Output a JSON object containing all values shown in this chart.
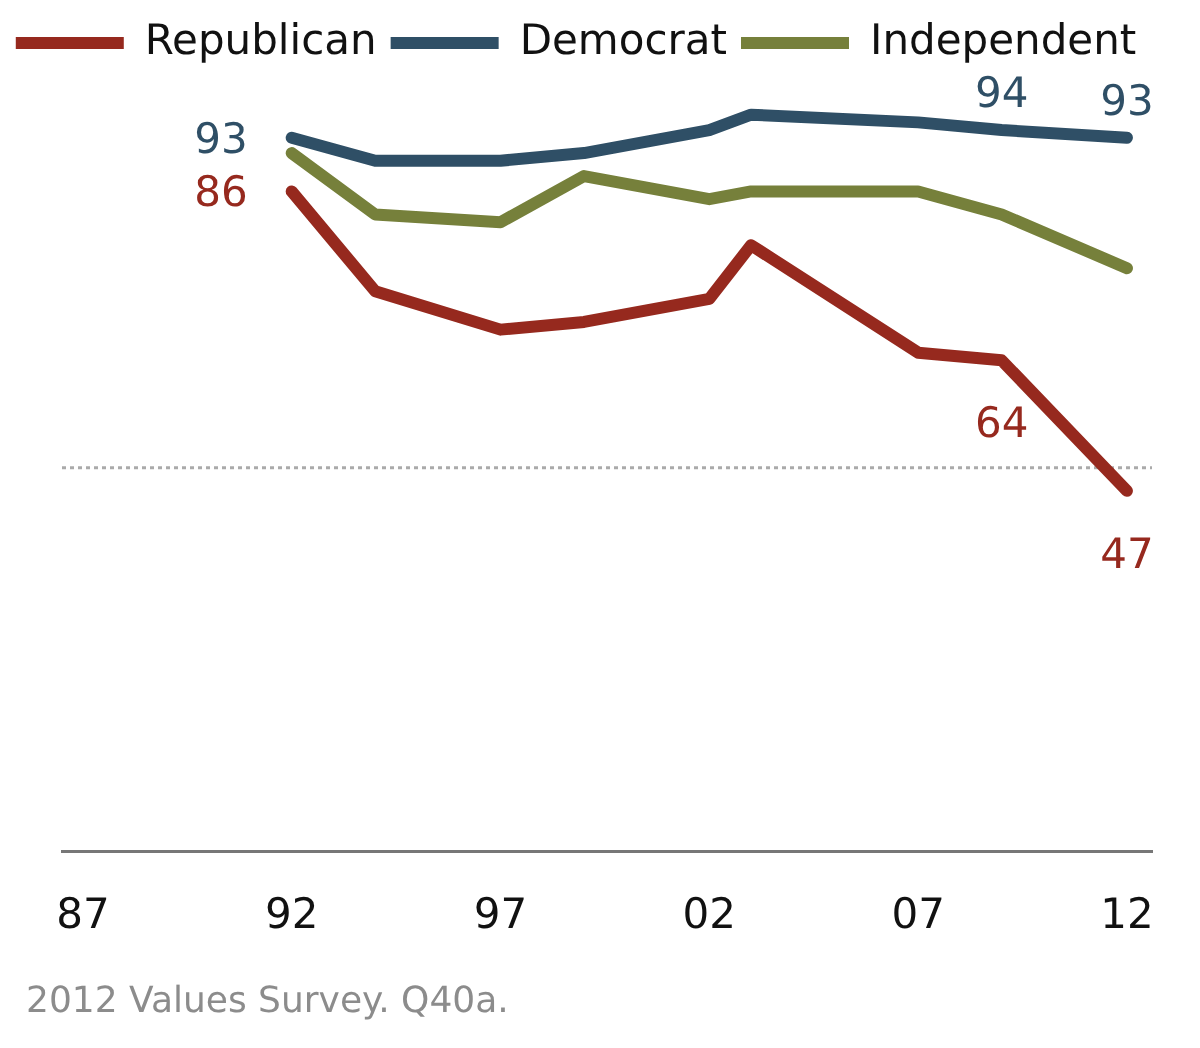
{
  "chart_data": {
    "type": "line",
    "x": [
      1992,
      1994,
      1997,
      1999,
      2002,
      2003,
      2007,
      2009,
      2012
    ],
    "xlim": [
      1986.5,
      2012.6
    ],
    "xticks": [
      {
        "value": 1987,
        "label": "87"
      },
      {
        "value": 1992,
        "label": "92"
      },
      {
        "value": 1997,
        "label": "97"
      },
      {
        "value": 2002,
        "label": "02"
      },
      {
        "value": 2007,
        "label": "07"
      },
      {
        "value": 2012,
        "label": "12"
      }
    ],
    "tick_labels": "x",
    "legend": "top",
    "marker": "none",
    "series": [
      {
        "name": "Republican",
        "color": "#96291e",
        "values": [
          86,
          73,
          68,
          69,
          72,
          79,
          65,
          64,
          47
        ],
        "value_labels": [
          "86",
          null,
          null,
          null,
          null,
          null,
          null,
          "64",
          "47"
        ]
      },
      {
        "name": "Democrat",
        "color": "#2f4f66",
        "values": [
          93,
          90,
          90,
          91,
          94,
          96,
          95,
          94,
          93
        ],
        "value_labels": [
          "93",
          null,
          null,
          null,
          null,
          null,
          null,
          "94",
          "93"
        ]
      },
      {
        "name": "Independent",
        "color": "#76803b",
        "values": [
          91,
          83,
          82,
          88,
          85,
          86,
          86,
          83,
          76
        ]
      }
    ],
    "ref_lines": [
      {
        "axis": "y",
        "value": 50,
        "color": "#aaaaaa",
        "line_style": "dotted"
      }
    ],
    "annotations": [
      "2012 Values Survey. Q40a."
    ]
  }
}
